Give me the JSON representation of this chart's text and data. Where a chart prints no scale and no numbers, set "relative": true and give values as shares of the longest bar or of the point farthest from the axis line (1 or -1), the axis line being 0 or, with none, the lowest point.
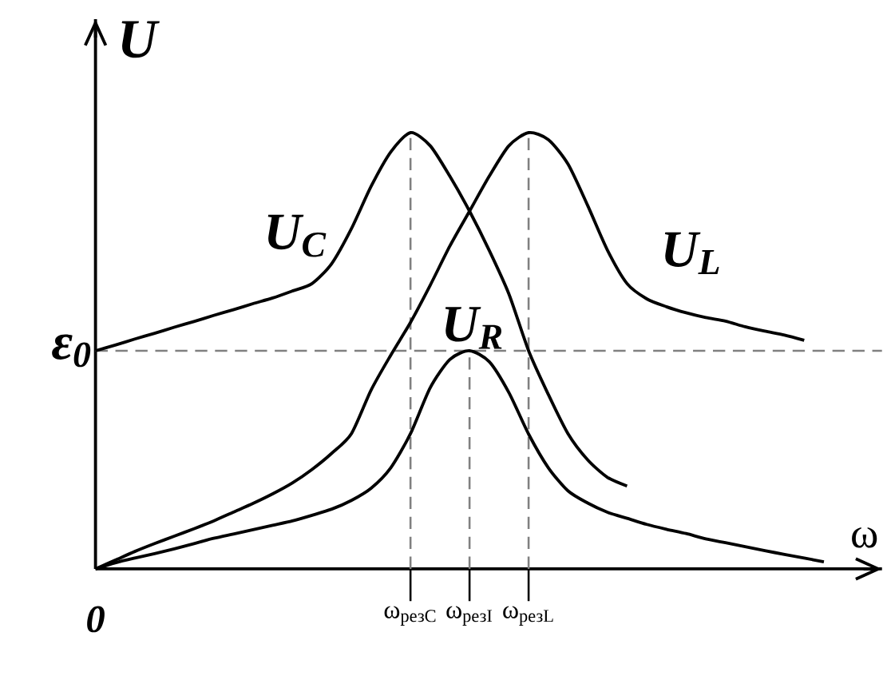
{
  "chart_data": {
    "type": "line",
    "relative": true,
    "xlabel": "ω",
    "ylabel": "U",
    "categories": [
      "0",
      null,
      null,
      null,
      null,
      null,
      null,
      null,
      null,
      null,
      null,
      null,
      null,
      null,
      null,
      null,
      "ω$_{резC}$",
      null,
      null,
      "ω$_{резI}$",
      null,
      null,
      "ω$_{резL}$",
      null,
      null,
      null,
      null,
      null,
      null,
      null,
      null,
      null,
      null,
      null,
      null,
      null,
      null,
      null
    ],
    "series": [
      {
        "name": "U$_{C}$",
        "color": "#000000",
        "values": [
          0.5,
          0.513,
          0.527,
          0.54,
          0.554,
          0.567,
          0.581,
          0.594,
          0.608,
          0.621,
          0.637,
          0.654,
          0.7,
          0.78,
          0.877,
          0.956,
          1,
          0.97,
          0.9,
          0.82,
          0.73,
          0.63,
          0.5,
          0.4,
          0.31,
          0.25,
          0.21,
          0.19,
          null,
          null,
          null,
          null,
          null,
          null,
          null,
          null,
          null,
          null
        ]
      },
      {
        "name": "U$_{L}$",
        "color": "#000000",
        "values": [
          0,
          0.02,
          0.04,
          0.058,
          0.075,
          0.092,
          0.11,
          0.13,
          0.15,
          0.172,
          0.197,
          0.228,
          0.265,
          0.31,
          0.41,
          0.49,
          0.565,
          0.65,
          0.74,
          0.82,
          0.9,
          0.97,
          1,
          0.984,
          0.928,
          0.833,
          0.731,
          0.654,
          0.619,
          0.601,
          0.587,
          0.576,
          0.568,
          0.555,
          0.545,
          0.536,
          0.524,
          null
        ]
      },
      {
        "name": "U$_{R}$",
        "color": "#000000",
        "values": [
          0,
          0.014,
          0.025,
          0.035,
          0.046,
          0.058,
          0.07,
          0.08,
          0.09,
          0.1,
          0.11,
          0.123,
          0.137,
          0.157,
          0.185,
          0.232,
          0.31,
          0.415,
          0.48,
          0.5,
          0.475,
          0.404,
          0.309,
          0.232,
          0.179,
          0.151,
          0.13,
          0.116,
          0.102,
          0.091,
          0.081,
          0.069,
          0.06,
          0.051,
          0.042,
          0.033,
          0.025,
          0.016
        ]
      }
    ],
    "ref_lines": [
      {
        "axis": "y",
        "value": 0.5,
        "label": "ε$_{0}$",
        "line_style": "dashed",
        "color": "#808080"
      },
      {
        "axis": "x",
        "value": "ω$_{резC}$",
        "line_style": "dashed",
        "color": "#808080"
      },
      {
        "axis": "x",
        "value": "ω$_{резI}$",
        "line_style": "dashed",
        "color": "#808080"
      },
      {
        "axis": "x",
        "value": "ω$_{резL}$",
        "line_style": "dashed",
        "color": "#808080"
      }
    ]
  }
}
